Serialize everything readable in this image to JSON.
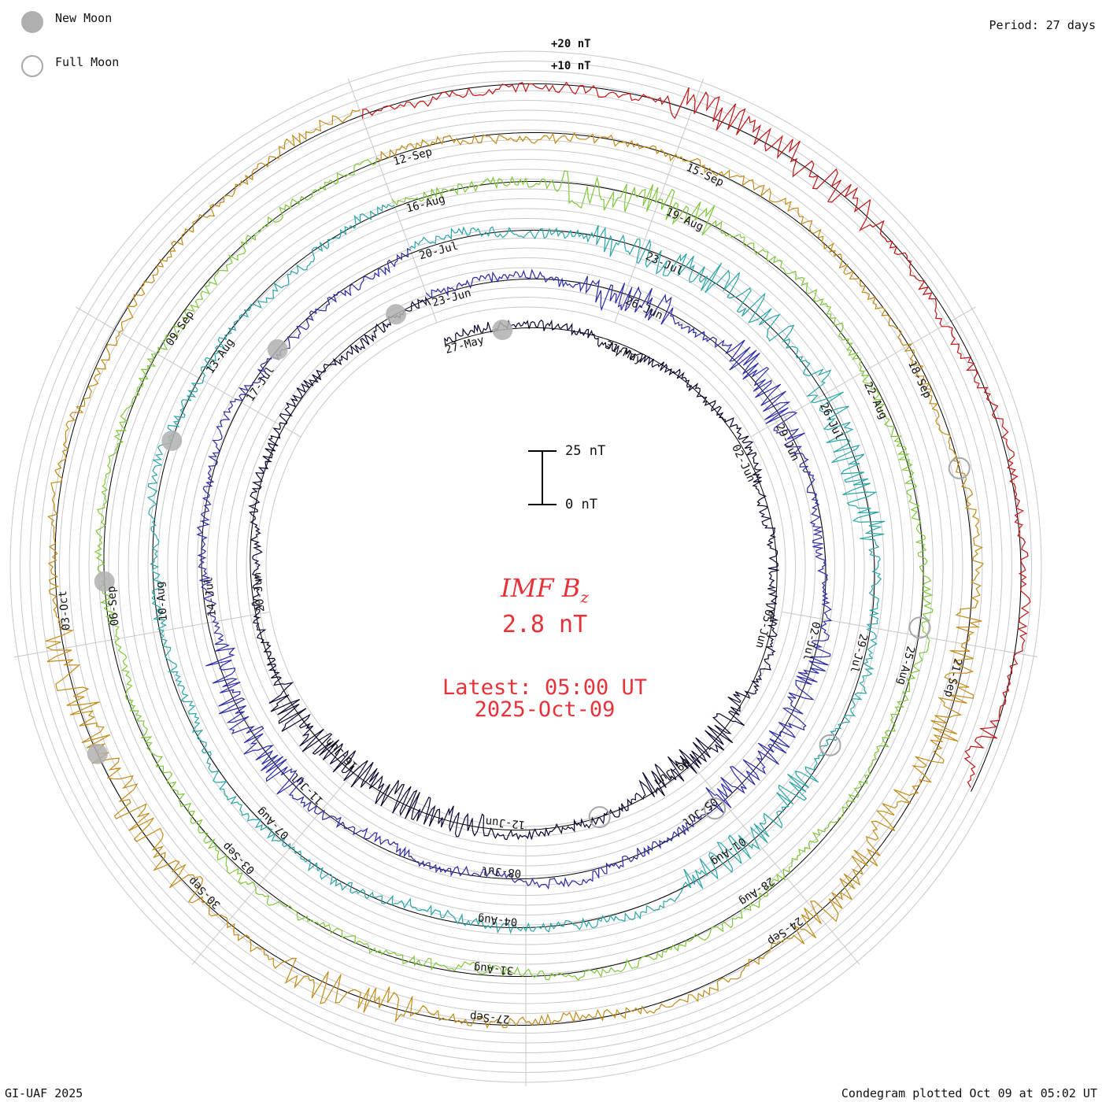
{
  "legend": {
    "new_moon_label": "New Moon",
    "full_moon_label": "Full Moon",
    "new_moon_color": "#b0b0b0",
    "full_moon_color": "#a8a8a8"
  },
  "period_label": "Period: 27 days",
  "footer": {
    "credit": "GI-UAF 2025",
    "plotted": "Condegram plotted Oct 09 at 05:02 UT"
  },
  "scale_bar": {
    "top_label": "25 nT",
    "bottom_label": "0 nT"
  },
  "outer_scale": {
    "plus20": "+20 nT",
    "plus10": "+10 nT"
  },
  "center": {
    "title": "IMF B",
    "title_sub": "z",
    "value": "2.8 nT",
    "latest_time": "Latest: 05:00 UT",
    "latest_date": "2025-Oct-09"
  },
  "chart_data": {
    "type": "line",
    "title": "IMF Bz condegram (spiral, 27-day rotation)",
    "period_days": 27,
    "start_date": "2025-05-31",
    "end_date": "2025-10-09",
    "latest_value_nT": 2.8,
    "units": "nT",
    "scale_reference_nT": [
      0,
      25
    ],
    "ring_offsets_nT": [
      10,
      20
    ],
    "rotations": [
      {
        "index": 1,
        "color": "#0c0530",
        "date_labels": [
          "27-May",
          "31-May",
          "02-Jun",
          "05-Jun",
          "09-Jun",
          "12-Jun",
          "16-Jun",
          "20-Jun"
        ]
      },
      {
        "index": 2,
        "color": "#2b2aa8",
        "date_labels": [
          "23-Jun",
          "26-Jun",
          "29-Jun",
          "02-Jul",
          "05-Jul",
          "08-Jul",
          "11-Jul",
          "14-Jul",
          "17-Jul"
        ]
      },
      {
        "index": 3,
        "color": "#2aa5a8",
        "date_labels": [
          "20-Jul",
          "23-Jul",
          "26-Jul",
          "29-Jul",
          "01-Aug",
          "04-Aug",
          "07-Aug",
          "10-Aug",
          "13-Aug"
        ]
      },
      {
        "index": 4,
        "color": "#7ec83a",
        "date_labels": [
          "16-Aug",
          "19-Aug",
          "22-Aug",
          "25-Aug",
          "28-Aug",
          "31-Aug",
          "03-Sep",
          "06-Sep",
          "09-Sep"
        ]
      },
      {
        "index": 5,
        "color": "#c48a18",
        "date_labels": [
          "12-Sep",
          "15-Sep",
          "18-Sep",
          "21-Sep",
          "24-Sep",
          "27-Sep",
          "30-Sep",
          "03-Oct"
        ]
      },
      {
        "index": 6,
        "color": "#c41414",
        "date_labels": []
      }
    ],
    "new_moon_markers": 5,
    "full_moon_markers": 6
  }
}
